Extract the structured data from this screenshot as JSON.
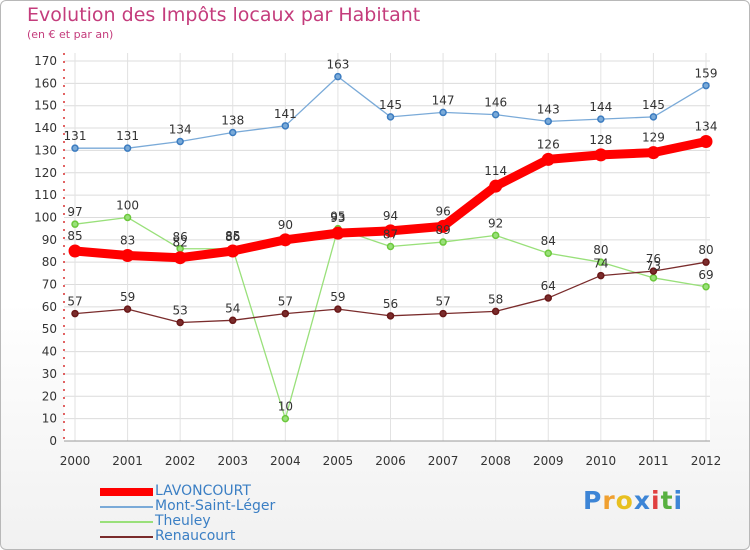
{
  "header": {
    "title": "Evolution des Impôts locaux par Habitant",
    "subtitle": "(en € et par an)"
  },
  "logo": {
    "text": "Proxiti",
    "letters": [
      "P",
      "r",
      "o",
      "x",
      "i",
      "t",
      "i"
    ],
    "colors": [
      "#3d85d6",
      "#f0a030",
      "#e8c020",
      "#3d85d6",
      "#e04040",
      "#58b040",
      "#3d85d6"
    ]
  },
  "chart_data": {
    "type": "line",
    "title": "Evolution des Impôts locaux par Habitant",
    "subtitle": "(en € et par an)",
    "xlabel": "",
    "ylabel": "",
    "ylim": [
      0,
      170
    ],
    "yticks": [
      0,
      10,
      20,
      30,
      40,
      50,
      60,
      70,
      80,
      90,
      100,
      110,
      120,
      130,
      140,
      150,
      160,
      170
    ],
    "grid": true,
    "legend_position": "bottom-left",
    "x": [
      "2000",
      "2001",
      "2002",
      "2003",
      "2004",
      "2005",
      "2006",
      "2007",
      "2008",
      "2009",
      "2010",
      "2011",
      "2012"
    ],
    "series": [
      {
        "name": "LAVONCOURT",
        "color": "#ff0000",
        "emphasis": true,
        "values": [
          85,
          83,
          82,
          85,
          90,
          93,
          94,
          96,
          114,
          126,
          128,
          129,
          134
        ]
      },
      {
        "name": "Mont-Saint-Léger",
        "color": "#7aaad8",
        "marker": "#3c7cc0",
        "emphasis": false,
        "values": [
          131,
          131,
          134,
          138,
          141,
          163,
          145,
          147,
          146,
          143,
          144,
          145,
          159
        ]
      },
      {
        "name": "Theuley",
        "color": "#99e07a",
        "marker": "#6cc83c",
        "emphasis": false,
        "values": [
          97,
          100,
          86,
          86,
          10,
          95,
          87,
          89,
          92,
          84,
          80,
          73,
          69
        ]
      },
      {
        "name": "Renaucourt",
        "color": "#7a2c2c",
        "marker": "#6a1818",
        "emphasis": false,
        "values": [
          57,
          59,
          53,
          54,
          57,
          59,
          56,
          57,
          58,
          64,
          74,
          76,
          80
        ]
      }
    ]
  }
}
